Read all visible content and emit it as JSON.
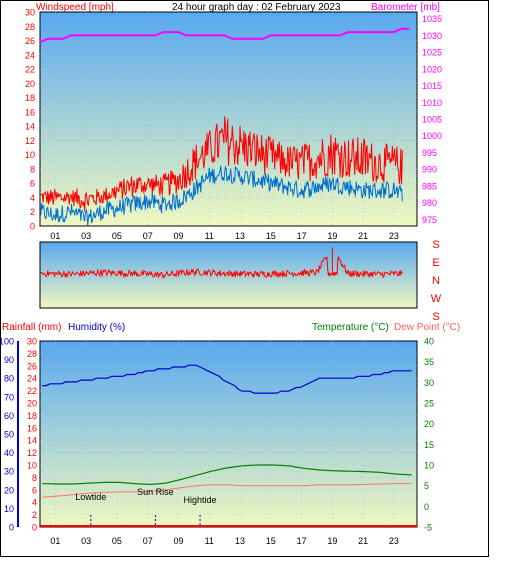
{
  "header": {
    "title": "24 hour graph day : 02 February 2023",
    "wind_label": "Windspeed [mph]",
    "baro_label": "Barometer [mb]",
    "rain_label": "Rainfall (mm)",
    "humidity_label": "Humidity (%)",
    "temp_label": "Temperature (°C)",
    "dew_label": "Dew Point (°C)"
  },
  "colors": {
    "wind": "#ff0000",
    "gust": "#ff0000",
    "avg_wind": "#0070d0",
    "barometer": "#ff00ff",
    "humidity": "#0000cc",
    "temperature": "#008000",
    "dewpoint": "#ff7070",
    "rain": "#ff0000",
    "sky_top": "#58a8f0",
    "sky_bottom": "#f0f8c0"
  },
  "x_ticks": [
    "01",
    "03",
    "05",
    "07",
    "09",
    "11",
    "13",
    "15",
    "17",
    "19",
    "21",
    "23"
  ],
  "direction_labels": [
    "S",
    "E",
    "N",
    "W",
    "S"
  ],
  "chart_data": [
    {
      "type": "line",
      "name": "wind-barometer",
      "xlim": [
        0,
        24.5
      ],
      "y_left": {
        "label": "Windspeed [mph]",
        "ticks": [
          0,
          2,
          4,
          6,
          8,
          10,
          12,
          14,
          16,
          18,
          20,
          22,
          24,
          26,
          28,
          30
        ],
        "range": [
          0,
          30
        ]
      },
      "y_right": {
        "label": "Barometer [mb]",
        "ticks": [
          975,
          980,
          985,
          990,
          995,
          1000,
          1005,
          1010,
          1015,
          1020,
          1025,
          1030,
          1035
        ],
        "range": [
          973,
          1037
        ]
      },
      "series": [
        {
          "name": "Windspeed",
          "axis": "left",
          "x": [
            0,
            1,
            2,
            3,
            4,
            5,
            6,
            7,
            8,
            9,
            10,
            11,
            12,
            13,
            14,
            15,
            16,
            17,
            18,
            19,
            20,
            21,
            22,
            23,
            24
          ],
          "values": [
            3,
            2.5,
            3,
            2,
            3,
            3.5,
            4,
            4.5,
            4,
            4.5,
            6,
            8,
            8.5,
            8,
            7.5,
            7,
            6.5,
            6,
            6.5,
            7,
            6.5,
            6,
            6,
            6,
            5
          ]
        },
        {
          "name": "Gust",
          "axis": "left",
          "x": [
            0,
            1,
            2,
            3,
            4,
            5,
            6,
            7,
            8,
            9,
            10,
            11,
            12,
            13,
            14,
            15,
            16,
            17,
            18,
            19,
            20,
            21,
            22,
            23,
            24
          ],
          "values": [
            5,
            5,
            5,
            5,
            5,
            6,
            7,
            7,
            7,
            8,
            11,
            13,
            15,
            14,
            13,
            12,
            11,
            11,
            12,
            13,
            12,
            12,
            11,
            11,
            10
          ]
        },
        {
          "name": "Barometer",
          "axis": "right",
          "x": [
            0,
            1,
            2,
            3,
            4,
            5,
            6,
            7,
            8,
            9,
            10,
            11,
            12,
            13,
            14,
            15,
            16,
            17,
            18,
            19,
            20,
            21,
            22,
            23,
            24
          ],
          "values": [
            1028,
            1029,
            1029.5,
            1030,
            1030,
            1030,
            1030,
            1030,
            1030.5,
            1030.5,
            1030,
            1030,
            1029.5,
            1029,
            1029,
            1029.5,
            1030,
            1030,
            1030,
            1030,
            1030.5,
            1030.5,
            1031,
            1031,
            1032
          ]
        }
      ]
    },
    {
      "type": "scatter",
      "name": "wind-direction",
      "xlim": [
        0,
        24.5
      ],
      "y_labels": [
        "S",
        "E",
        "N",
        "W",
        "S"
      ],
      "series": [
        {
          "name": "Wind direction",
          "x": [
            0,
            2,
            4,
            6,
            8,
            10,
            12,
            14,
            16,
            18,
            19,
            20,
            22,
            24
          ],
          "values": [
            190,
            185,
            195,
            190,
            180,
            200,
            190,
            185,
            190,
            195,
            350,
            190,
            185,
            190
          ]
        }
      ]
    },
    {
      "type": "line",
      "name": "temp-humidity-rain",
      "xlim": [
        0,
        24.5
      ],
      "y_rain": {
        "label": "Rainfall (mm)",
        "ticks": [
          0,
          10,
          20,
          30,
          40,
          50,
          60,
          70,
          80,
          90,
          100
        ],
        "range": [
          0,
          100
        ]
      },
      "y_hum": {
        "label": "Humidity (%)",
        "ticks": [
          0,
          2,
          4,
          6,
          8,
          10,
          12,
          14,
          16,
          18,
          20,
          22,
          24,
          26,
          28,
          30
        ],
        "range": [
          0,
          30
        ]
      },
      "y_temp": {
        "label": "Temperature (°C)",
        "ticks": [
          -5,
          0,
          5,
          10,
          15,
          20,
          25,
          30,
          35,
          40
        ],
        "range": [
          -5,
          40
        ]
      },
      "series": [
        {
          "name": "Humidity",
          "axis": "rain",
          "x": [
            0,
            1,
            2,
            3,
            4,
            5,
            6,
            7,
            8,
            9,
            10,
            11,
            12,
            13,
            14,
            15,
            16,
            17,
            18,
            19,
            20,
            21,
            22,
            23,
            24
          ],
          "values": [
            76,
            77,
            78,
            79,
            80,
            81,
            82,
            84,
            85,
            86,
            87,
            83,
            78,
            73,
            72,
            72,
            73,
            76,
            80,
            80,
            80,
            81,
            82,
            84,
            84
          ]
        },
        {
          "name": "Temperature",
          "axis": "temp",
          "x": [
            0,
            1,
            2,
            3,
            4,
            5,
            6,
            7,
            8,
            9,
            10,
            11,
            12,
            13,
            14,
            15,
            16,
            17,
            18,
            19,
            20,
            21,
            22,
            23,
            24
          ],
          "values": [
            5.5,
            5.4,
            5.4,
            5.6,
            5.8,
            5.8,
            5.5,
            5.3,
            5.6,
            6.5,
            7.5,
            8.5,
            9.3,
            9.8,
            10,
            10,
            9.8,
            9.2,
            8.8,
            8.6,
            8.5,
            8.4,
            8.2,
            7.8,
            7.6
          ]
        },
        {
          "name": "Dew Point",
          "axis": "temp",
          "x": [
            0,
            1,
            2,
            3,
            4,
            5,
            6,
            7,
            8,
            9,
            10,
            11,
            12,
            13,
            14,
            15,
            16,
            17,
            18,
            19,
            20,
            21,
            22,
            23,
            24
          ],
          "values": [
            2.2,
            2.5,
            2.8,
            3.2,
            3.4,
            3.5,
            3.5,
            3.6,
            4,
            4.5,
            5,
            5.2,
            5.2,
            5,
            5,
            5,
            5,
            5,
            5.2,
            5.2,
            5.2,
            5.3,
            5.4,
            5.5,
            5.5
          ]
        }
      ],
      "annotations": [
        {
          "label": "Lowtide",
          "x": 3.3,
          "temp": 1.5
        },
        {
          "label": "Sun Rise",
          "x": 7.5,
          "temp": 2.8
        },
        {
          "label": "Hightide",
          "x": 10.4,
          "temp": 0.8
        }
      ],
      "markers": [
        3.3,
        7.5,
        10.4
      ]
    }
  ]
}
